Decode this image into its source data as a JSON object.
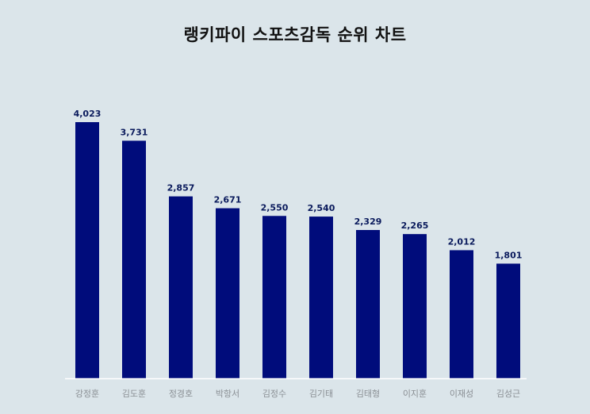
{
  "chart_data": {
    "type": "bar",
    "title": "랭키파이 스포츠감독 순위 차트",
    "categories": [
      "강정훈",
      "김도훈",
      "정경호",
      "박항서",
      "김정수",
      "김기태",
      "김태형",
      "이지훈",
      "이재성",
      "김성근"
    ],
    "values": [
      4023,
      3731,
      2857,
      2671,
      2550,
      2540,
      2329,
      2265,
      2012,
      1801
    ],
    "value_labels": [
      "4,023",
      "3,731",
      "2,857",
      "2,671",
      "2,550",
      "2,540",
      "2,329",
      "2,265",
      "2,012",
      "1,801"
    ],
    "ylim": [
      0,
      4023
    ],
    "grid": false,
    "colors": {
      "bar": "#000c7b",
      "value_label": "#0a1a5c",
      "category_label": "#8a8f94",
      "baseline": "#ffffff",
      "background": "#dbe5ea"
    }
  }
}
